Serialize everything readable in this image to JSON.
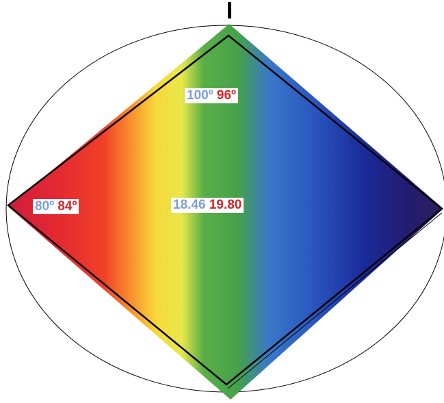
{
  "diagram": {
    "top_label": {
      "blue": "100º",
      "red": "96º"
    },
    "left_label": {
      "blue": "80º",
      "red": "84º"
    },
    "center_label": {
      "blue": "18.46",
      "red": "19.80"
    },
    "colors": {
      "blue_text": "#7e9fd4",
      "red_text": "#d8242b",
      "spectrum": [
        "#d41f3a",
        "#f03a2a",
        "#f98a2a",
        "#f6e83a",
        "#49a94a",
        "#3a6bd0",
        "#1c2f9c",
        "#2a1f6a"
      ]
    }
  }
}
